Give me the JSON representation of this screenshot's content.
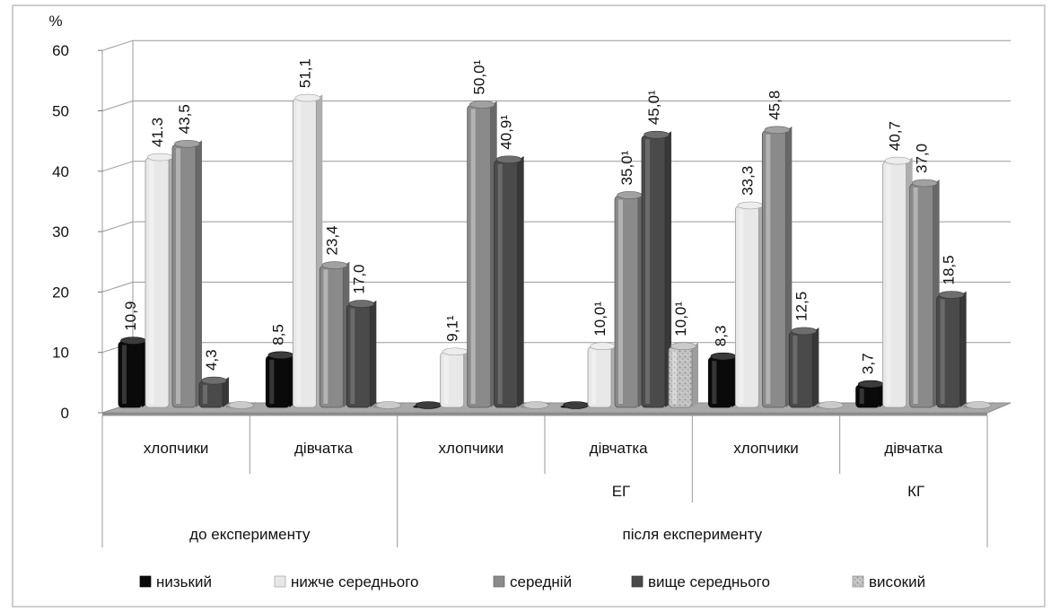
{
  "chart_data": {
    "type": "bar",
    "ylabel": "%",
    "ylim": [
      0,
      60
    ],
    "yticks": [
      0,
      10,
      20,
      30,
      40,
      50,
      60
    ],
    "categories": [
      "хлопчики",
      "дівчатка",
      "хлопчики",
      "дівчатка",
      "хлопчики",
      "дівчатка"
    ],
    "group_level_2": [
      "ЕГ",
      "КГ"
    ],
    "group_level_3": [
      "до експерименту",
      "після експерименту"
    ],
    "series": [
      {
        "name": "низький",
        "color": "#0a0a0a",
        "values": [
          10.9,
          8.5,
          0,
          0,
          8.3,
          3.7
        ],
        "labels": [
          "10,9",
          "8,5",
          "",
          "",
          "8,3",
          "3,7"
        ]
      },
      {
        "name": "нижче середнього",
        "color": "#e8e8e8",
        "values": [
          41.3,
          51.1,
          9.1,
          10.0,
          33.3,
          40.7
        ],
        "labels": [
          "41.3",
          "51,1",
          "9,1¹",
          "10,0¹",
          "33,3",
          "40,7"
        ]
      },
      {
        "name": "середній",
        "color": "#8a8a8a",
        "values": [
          43.5,
          23.4,
          50.0,
          35.0,
          45.8,
          37.0
        ],
        "labels": [
          "43,5",
          "23,4",
          "50,0¹",
          "35,0¹",
          "45,8",
          "37,0"
        ]
      },
      {
        "name": "вище середнього",
        "color": "#4a4a4a",
        "values": [
          4.3,
          17.0,
          40.9,
          45.0,
          12.5,
          18.5
        ],
        "labels": [
          "4,3",
          "17,0",
          "40,9¹",
          "45,0¹",
          "12,5",
          "18,5"
        ]
      },
      {
        "name": "високий",
        "color": "#bdbdbd",
        "values": [
          0,
          0,
          0,
          10.0,
          0,
          0
        ],
        "labels": [
          "",
          "",
          "",
          "10,0¹",
          "",
          ""
        ]
      }
    ],
    "legend_position": "bottom",
    "grid": true
  }
}
